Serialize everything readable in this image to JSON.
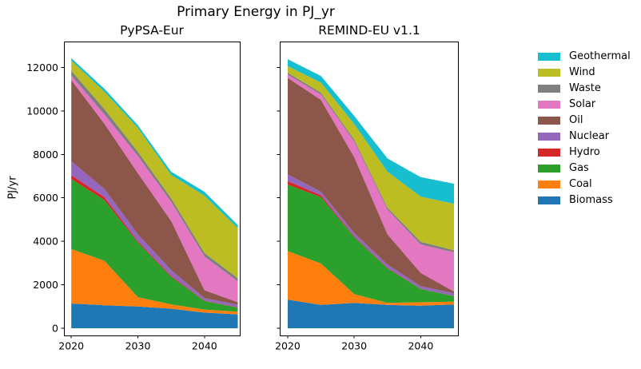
{
  "figure": {
    "title": "Primary Energy in PJ_yr",
    "ylabel": "PJ/yr",
    "background": "#ffffff",
    "text_color": "#000000",
    "spine_color": "#000000"
  },
  "legend": {
    "position": "right",
    "frame": false,
    "entries": [
      {
        "label": "Geothermal",
        "color": "#17becf"
      },
      {
        "label": "Wind",
        "color": "#bcbd22"
      },
      {
        "label": "Waste",
        "color": "#7f7f7f"
      },
      {
        "label": "Solar",
        "color": "#e377c2"
      },
      {
        "label": "Oil",
        "color": "#8c564b"
      },
      {
        "label": "Nuclear",
        "color": "#9467bd"
      },
      {
        "label": "Hydro",
        "color": "#d62728"
      },
      {
        "label": "Gas",
        "color": "#2ca02c"
      },
      {
        "label": "Coal",
        "color": "#ff7f0e"
      },
      {
        "label": "Biomass",
        "color": "#1f77b4"
      }
    ]
  },
  "chart_data": [
    {
      "type": "area",
      "stacked": true,
      "title": "PyPSA-Eur",
      "x": [
        2020,
        2025,
        2030,
        2035,
        2040,
        2045
      ],
      "xticks": [
        2020,
        2030,
        2040
      ],
      "yticks": [
        0,
        2000,
        4000,
        6000,
        8000,
        10000,
        12000
      ],
      "xlim": [
        2018.9,
        2045.3
      ],
      "ylim": [
        -330,
        13190
      ],
      "grid": false,
      "series": [
        {
          "name": "Biomass",
          "color": "#1f77b4",
          "values": [
            1140,
            1060,
            1000,
            900,
            720,
            640
          ]
        },
        {
          "name": "Coal",
          "color": "#ff7f0e",
          "values": [
            2510,
            2040,
            430,
            200,
            140,
            120
          ]
        },
        {
          "name": "Gas",
          "color": "#2ca02c",
          "values": [
            3210,
            2790,
            2520,
            1260,
            400,
            190
          ]
        },
        {
          "name": "Hydro",
          "color": "#d62728",
          "values": [
            180,
            140,
            60,
            50,
            20,
            15
          ]
        },
        {
          "name": "Nuclear",
          "color": "#9467bd",
          "values": [
            650,
            370,
            310,
            260,
            110,
            120
          ]
        },
        {
          "name": "Oil",
          "color": "#8c564b",
          "values": [
            3730,
            3000,
            2810,
            2260,
            360,
            115
          ]
        },
        {
          "name": "Solar",
          "color": "#e377c2",
          "values": [
            210,
            430,
            800,
            885,
            1555,
            955
          ]
        },
        {
          "name": "Waste",
          "color": "#7f7f7f",
          "values": [
            220,
            245,
            185,
            160,
            160,
            145
          ]
        },
        {
          "name": "Wind",
          "color": "#bcbd22",
          "values": [
            465,
            795,
            1105,
            1075,
            2635,
            2300
          ]
        },
        {
          "name": "Geothermal",
          "color": "#17becf",
          "values": [
            110,
            140,
            120,
            150,
            180,
            150
          ]
        }
      ]
    },
    {
      "type": "area",
      "stacked": true,
      "title": "REMIND-EU v1.1",
      "x": [
        2020,
        2025,
        2030,
        2035,
        2040,
        2045
      ],
      "xticks": [
        2020,
        2030,
        2040
      ],
      "yticks": [
        0,
        2000,
        4000,
        6000,
        8000,
        10000,
        12000
      ],
      "xlim": [
        2018.8,
        2045.6
      ],
      "ylim": [
        -330,
        13190
      ],
      "grid": false,
      "series": [
        {
          "name": "Biomass",
          "color": "#1f77b4",
          "values": [
            1320,
            1075,
            1165,
            1075,
            1040,
            1100
          ]
        },
        {
          "name": "Coal",
          "color": "#ff7f0e",
          "values": [
            2230,
            1900,
            405,
            90,
            160,
            125
          ]
        },
        {
          "name": "Gas",
          "color": "#2ca02c",
          "values": [
            3060,
            3055,
            2630,
            1590,
            610,
            255
          ]
        },
        {
          "name": "Hydro",
          "color": "#d62728",
          "values": [
            160,
            90,
            30,
            30,
            10,
            5
          ]
        },
        {
          "name": "Nuclear",
          "color": "#9467bd",
          "values": [
            305,
            160,
            150,
            145,
            115,
            120
          ]
        },
        {
          "name": "Oil",
          "color": "#8c564b",
          "values": [
            4445,
            4225,
            3490,
            1390,
            610,
            85
          ]
        },
        {
          "name": "Solar",
          "color": "#e377c2",
          "values": [
            150,
            245,
            715,
            1140,
            1310,
            1800
          ]
        },
        {
          "name": "Waste",
          "color": "#7f7f7f",
          "values": [
            85,
            85,
            85,
            85,
            125,
            95
          ]
        },
        {
          "name": "Wind",
          "color": "#bcbd22",
          "values": [
            305,
            465,
            730,
            1655,
            2080,
            2145
          ]
        },
        {
          "name": "Geothermal",
          "color": "#17becf",
          "values": [
            317,
            305,
            370,
            610,
            890,
            920
          ]
        }
      ]
    }
  ]
}
